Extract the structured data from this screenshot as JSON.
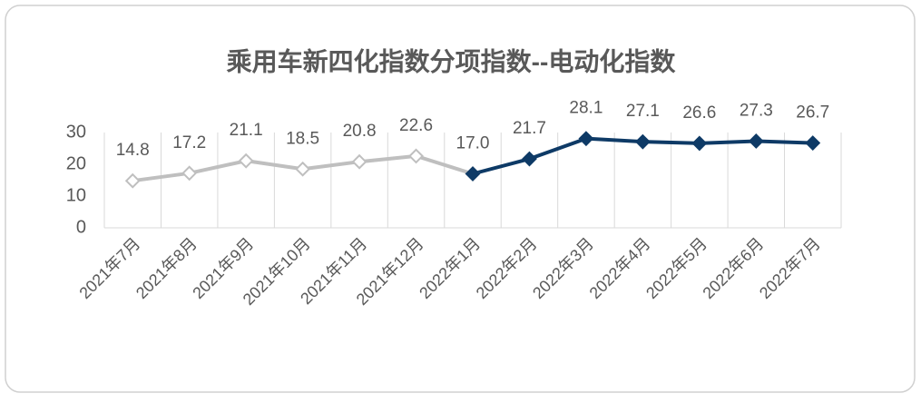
{
  "chart_data": {
    "type": "line",
    "title": "乘用车新四化指数分项指数--电动化指数",
    "categories": [
      "2021年7月",
      "2021年8月",
      "2021年9月",
      "2021年10月",
      "2021年11月",
      "2021年12月",
      "2022年1月",
      "2022年2月",
      "2022年3月",
      "2022年4月",
      "2022年5月",
      "2022年6月",
      "2022年7月"
    ],
    "series": [
      {
        "color": "#bfbfbf",
        "marker": "hollow-diamond",
        "values": [
          14.8,
          17.2,
          21.1,
          18.5,
          20.8,
          22.6,
          17.0,
          null,
          null,
          null,
          null,
          null,
          null
        ],
        "value_labels": [
          "14.8",
          "17.2",
          "21.1",
          "18.5",
          "20.8",
          "22.6",
          null,
          null,
          null,
          null,
          null,
          null,
          null
        ]
      },
      {
        "color": "#0e3a66",
        "marker": "filled-diamond",
        "values": [
          null,
          null,
          null,
          null,
          null,
          null,
          17.0,
          21.7,
          28.1,
          27.1,
          26.6,
          27.3,
          26.7
        ],
        "value_labels": [
          null,
          null,
          null,
          null,
          null,
          null,
          "17.0",
          "21.7",
          "28.1",
          "27.1",
          "26.6",
          "27.3",
          "26.7"
        ]
      }
    ],
    "ylim": [
      0,
      30
    ],
    "yticks": [
      0,
      10,
      20,
      30
    ]
  }
}
